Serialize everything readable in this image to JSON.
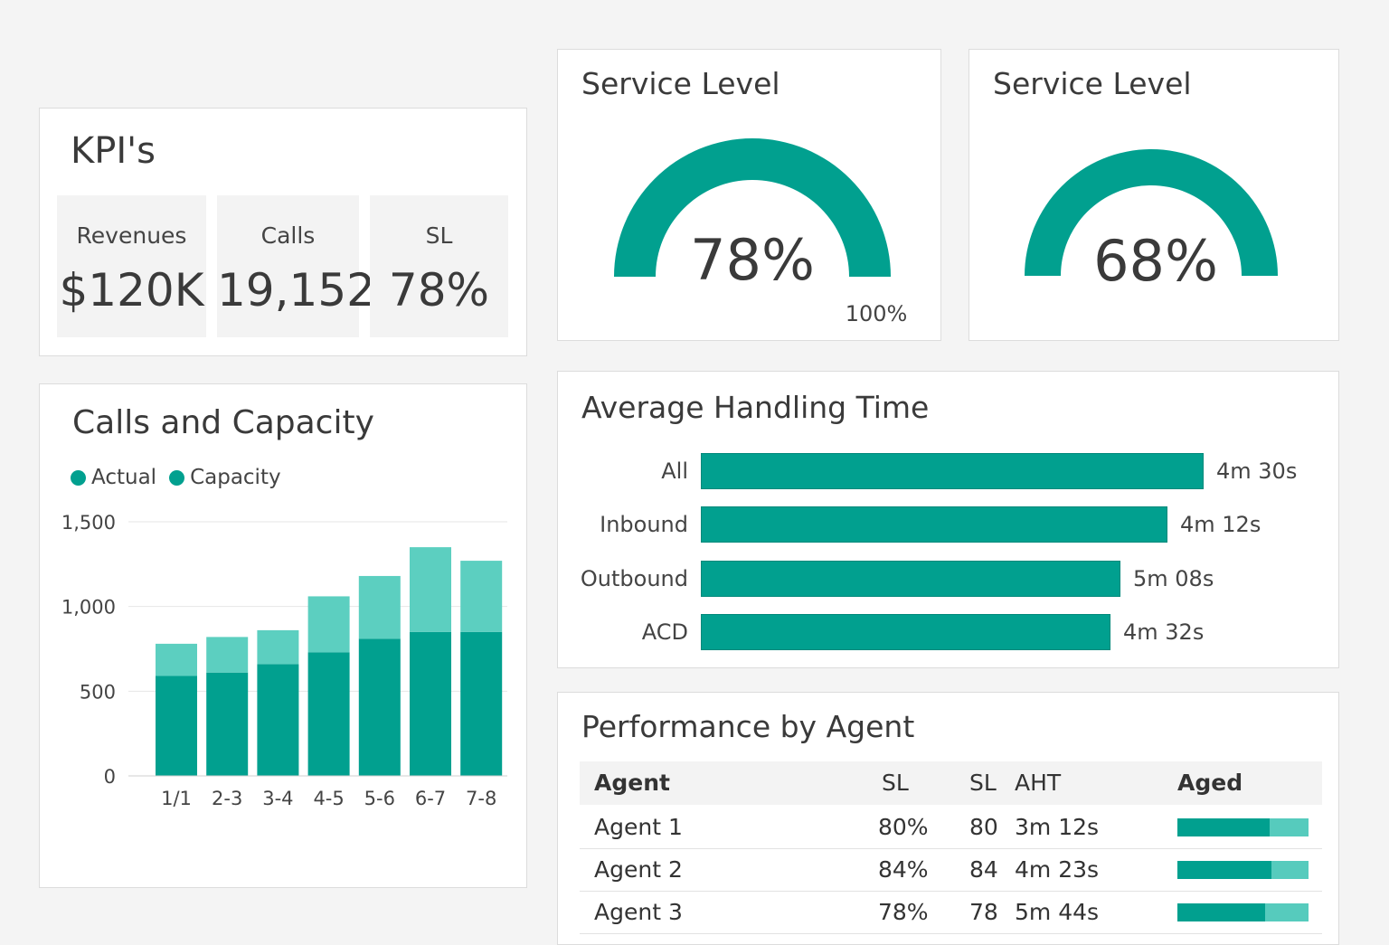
{
  "colors": {
    "primary": "#01a08f",
    "light": "#5ccfc0",
    "background": "#f4f4f4"
  },
  "kpi": {
    "title": "KPI's",
    "tiles": [
      {
        "label": "Revenues",
        "value": "$120K"
      },
      {
        "label": "Calls",
        "value": "19,152"
      },
      {
        "label": "SL",
        "value": "78%"
      }
    ]
  },
  "gauges": [
    {
      "title": "Service Level",
      "value_text": "78%",
      "fraction": 1.0,
      "max_label": "100%"
    },
    {
      "title": "Service Level",
      "value_text": "68%",
      "fraction": 1.0
    }
  ],
  "calls_chart": {
    "title": "Calls and Capacity",
    "legend": [
      {
        "name": "Actual",
        "color": "#01a08f"
      },
      {
        "name": "Capacity",
        "color": "#01a08f"
      }
    ]
  },
  "chart_data": {
    "type": "bar",
    "stacked": true,
    "title": "Calls and Capacity",
    "categories": [
      "1/1",
      "2-3",
      "3-4",
      "4-5",
      "5-6",
      "6-7",
      "7-8"
    ],
    "series": [
      {
        "name": "Actual",
        "values": [
          590,
          610,
          660,
          730,
          810,
          850,
          850
        ],
        "color": "#01a08f"
      },
      {
        "name": "Capacity",
        "values": [
          190,
          210,
          200,
          330,
          370,
          500,
          420
        ],
        "color": "#5ccfc0"
      }
    ],
    "y_ticks": [
      "1,500",
      "1,000",
      "500",
      "0"
    ],
    "ylim": [
      0,
      1500
    ],
    "grid": true,
    "legend_position": "top-left"
  },
  "aht": {
    "title": "Average Handling Time",
    "rows": [
      {
        "label": "All",
        "value": "4m 30s",
        "fraction": 1.0
      },
      {
        "label": "Inbound",
        "value": "4m 12s",
        "fraction": 0.928
      },
      {
        "label": "Outbound",
        "value": "5m 08s",
        "fraction": 0.834
      },
      {
        "label": "ACD",
        "value": "4m 32s",
        "fraction": 0.814
      }
    ]
  },
  "agents": {
    "title": "Performance by Agent",
    "headers": {
      "agent": "Agent",
      "sl_pct": "SL",
      "sl": "SL",
      "aht": "AHT",
      "aged": "Aged"
    },
    "rows": [
      {
        "agent": "Agent 1",
        "sl_pct": "80%",
        "sl": "80",
        "aht": "3m 12s",
        "aged_fraction": 0.7
      },
      {
        "agent": "Agent 2",
        "sl_pct": "84%",
        "sl": "84",
        "aht": "4m 23s",
        "aged_fraction": 0.72
      },
      {
        "agent": "Agent 3",
        "sl_pct": "78%",
        "sl": "78",
        "aht": "5m 44s",
        "aged_fraction": 0.67
      }
    ]
  }
}
